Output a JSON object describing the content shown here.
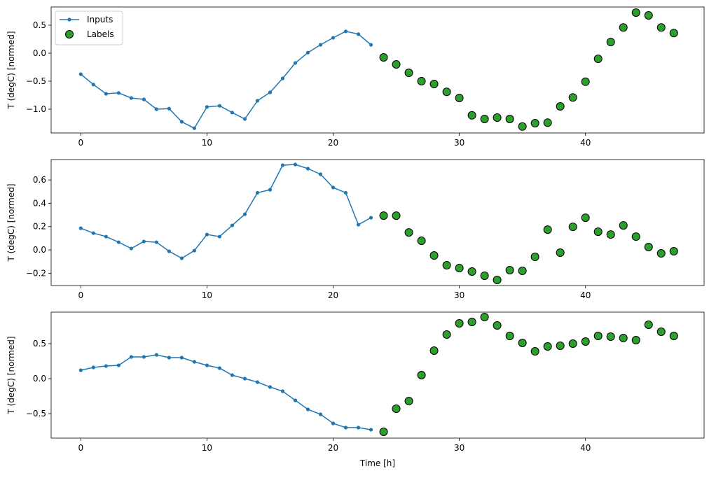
{
  "chart_data": [
    {
      "type": "line",
      "ylabel": "T (degC) [normed]",
      "xlabel": "",
      "xlim": [
        -2.35,
        49.4
      ],
      "ylim": [
        -1.425,
        0.825
      ],
      "xticks": [
        0,
        10,
        20,
        30,
        40
      ],
      "yticks": [
        -1.0,
        -0.5,
        0.0,
        0.5
      ],
      "ytick_labels": [
        "−1.0",
        "−0.5",
        "0.0",
        "0.5"
      ],
      "legend": {
        "placement": "top-left",
        "entries": [
          "Inputs",
          "Labels"
        ]
      },
      "series": [
        {
          "name": "Inputs",
          "kind": "line-markers",
          "color": "#1f77b4",
          "x": [
            0,
            1,
            2,
            3,
            4,
            5,
            6,
            7,
            8,
            9,
            10,
            11,
            12,
            13,
            14,
            15,
            16,
            17,
            18,
            19,
            20,
            21,
            22,
            23
          ],
          "y": [
            -0.375,
            -0.56,
            -0.725,
            -0.71,
            -0.8,
            -0.825,
            -1.0,
            -0.99,
            -1.225,
            -1.34,
            -0.96,
            -0.94,
            -1.06,
            -1.175,
            -0.85,
            -0.7,
            -0.45,
            -0.175,
            0.01,
            0.15,
            0.275,
            0.39,
            0.34,
            0.15
          ]
        },
        {
          "name": "Labels",
          "kind": "scatter",
          "color": "#2ca02c",
          "x": [
            24,
            25,
            26,
            27,
            28,
            29,
            30,
            31,
            32,
            33,
            34,
            35,
            36,
            37,
            38,
            39,
            40,
            41,
            42,
            43,
            44,
            45,
            46,
            47
          ],
          "y": [
            -0.075,
            -0.2,
            -0.35,
            -0.5,
            -0.55,
            -0.69,
            -0.8,
            -1.11,
            -1.175,
            -1.15,
            -1.175,
            -1.31,
            -1.25,
            -1.24,
            -0.95,
            -0.79,
            -0.51,
            -0.1,
            0.2,
            0.46,
            0.725,
            0.675,
            0.46,
            0.36
          ]
        }
      ]
    },
    {
      "type": "line",
      "ylabel": "T (degC) [normed]",
      "xlabel": "",
      "xlim": [
        -2.35,
        49.4
      ],
      "ylim": [
        -0.306,
        0.775
      ],
      "xticks": [
        0,
        10,
        20,
        30,
        40
      ],
      "yticks": [
        -0.2,
        0.0,
        0.2,
        0.4,
        0.6
      ],
      "ytick_labels": [
        "−0.2",
        "0.0",
        "0.2",
        "0.4",
        "0.6"
      ],
      "series": [
        {
          "name": "Inputs",
          "kind": "line-markers",
          "color": "#1f77b4",
          "x": [
            0,
            1,
            2,
            3,
            4,
            5,
            6,
            7,
            8,
            9,
            10,
            11,
            12,
            13,
            14,
            15,
            16,
            17,
            18,
            19,
            20,
            21,
            22,
            23
          ],
          "y": [
            0.186,
            0.144,
            0.114,
            0.066,
            0.012,
            0.072,
            0.066,
            -0.012,
            -0.072,
            -0.006,
            0.132,
            0.114,
            0.21,
            0.306,
            0.49,
            0.516,
            0.727,
            0.733,
            0.697,
            0.649,
            0.535,
            0.49,
            0.216,
            0.276
          ]
        },
        {
          "name": "Labels",
          "kind": "scatter",
          "color": "#2ca02c",
          "x": [
            24,
            25,
            26,
            27,
            28,
            29,
            30,
            31,
            32,
            33,
            34,
            35,
            36,
            37,
            38,
            39,
            40,
            41,
            42,
            43,
            44,
            45,
            46,
            47
          ],
          "y": [
            0.294,
            0.294,
            0.15,
            0.078,
            -0.048,
            -0.132,
            -0.156,
            -0.186,
            -0.222,
            -0.258,
            -0.174,
            -0.18,
            -0.06,
            0.174,
            -0.024,
            0.198,
            0.276,
            0.156,
            0.132,
            0.21,
            0.114,
            0.024,
            -0.03,
            -0.012
          ]
        }
      ]
    },
    {
      "type": "line",
      "ylabel": "T (degC) [normed]",
      "xlabel": "Time [h]",
      "xlim": [
        -2.35,
        49.4
      ],
      "ylim": [
        -0.85,
        0.95
      ],
      "xticks": [
        0,
        10,
        20,
        30,
        40
      ],
      "yticks": [
        -0.5,
        0.0,
        0.5
      ],
      "ytick_labels": [
        "−0.5",
        "0.0",
        "0.5"
      ],
      "series": [
        {
          "name": "Inputs",
          "kind": "line-markers",
          "color": "#1f77b4",
          "x": [
            0,
            1,
            2,
            3,
            4,
            5,
            6,
            7,
            8,
            9,
            10,
            11,
            12,
            13,
            14,
            15,
            16,
            17,
            18,
            19,
            20,
            21,
            22,
            23
          ],
          "y": [
            0.12,
            0.16,
            0.18,
            0.19,
            0.31,
            0.31,
            0.34,
            0.3,
            0.3,
            0.24,
            0.19,
            0.15,
            0.05,
            0.0,
            -0.05,
            -0.12,
            -0.18,
            -0.31,
            -0.44,
            -0.51,
            -0.64,
            -0.7,
            -0.7,
            -0.73
          ]
        },
        {
          "name": "Labels",
          "kind": "scatter",
          "color": "#2ca02c",
          "x": [
            24,
            25,
            26,
            27,
            28,
            29,
            30,
            31,
            32,
            33,
            34,
            35,
            36,
            37,
            38,
            39,
            40,
            41,
            42,
            43,
            44,
            45,
            46,
            47
          ],
          "y": [
            -0.76,
            -0.43,
            -0.32,
            0.05,
            0.4,
            0.63,
            0.79,
            0.81,
            0.88,
            0.76,
            0.61,
            0.51,
            0.39,
            0.46,
            0.47,
            0.5,
            0.53,
            0.61,
            0.6,
            0.58,
            0.55,
            0.77,
            0.67,
            0.61
          ]
        }
      ]
    }
  ]
}
